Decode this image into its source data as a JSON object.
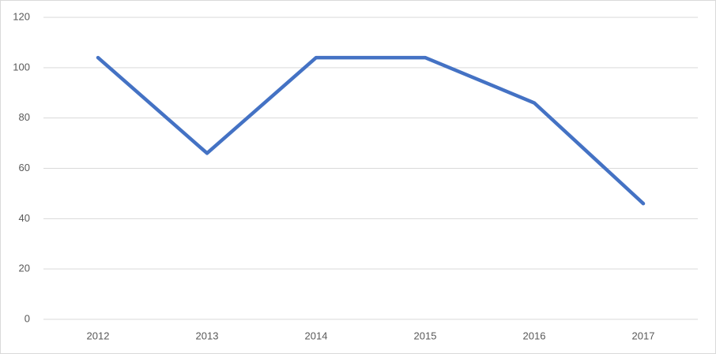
{
  "chart_data": {
    "type": "line",
    "categories": [
      "2012",
      "2013",
      "2014",
      "2015",
      "2016",
      "2017"
    ],
    "values": [
      104,
      66,
      104,
      104,
      86,
      46
    ],
    "color": "#4472c4",
    "ylim": [
      0,
      120
    ],
    "yticks": [
      0,
      20,
      40,
      60,
      80,
      100,
      120
    ],
    "grid": true
  }
}
